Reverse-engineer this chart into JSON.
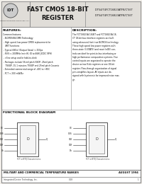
{
  "bg_color": "#f2efea",
  "border_color": "#888888",
  "panel_color": "#ffffff",
  "header_bg": "#e0ddd8",
  "header_title_line1": "FAST CMOS 18-BIT",
  "header_title_line2": "REGISTER",
  "header_part1": "IDT54/74FCT16823ATFB/CT/ET",
  "header_part2": "IDT54/74FCT16823ATFB/CT/ET",
  "features_title": "FEATURES:",
  "description_title": "DESCRIPTION:",
  "block_diagram_title": "FUNCTIONAL BLOCK DIAGRAM",
  "footer_line1": "MILITARY AND COMMERCIAL TEMPERATURE RANGES",
  "footer_date": "AUGUST 1994",
  "footer_company": "Integrated Device Technology, Inc.",
  "footer_num": "0.18",
  "footer_page": "1",
  "text_color": "#111111",
  "line_color": "#444444",
  "features_lines": [
    "Common features:",
    " - BiCMOS/BiCOMS Technology",
    " - High speed, low power CMOS replacement for",
    "    ABT functions",
    " - Typical tSK(o) (Output Skew) < 250ps",
    " - fSYS < 200MHz (min ffl, fO to 66ffl JEDEC 9PH)",
    " - <5ns setup and/or hold-to-clock",
    " - Packages include 56 mil pitch SSOP, 25mil pitch",
    "    TSSOP, 15.1 minutes TVSOP and 25mil pitch Ceramic",
    " - Extended commercial range of -40C to +85C",
    " - FCT < 200 mW/Bz"
  ],
  "desc_lines": [
    "The FCT16823A 18-BIT and FCT16823A 18-",
    "CT 18-bit bus interface registers are built",
    "using advanced, fast true BiCMOS technology.",
    "These high speed low power registers with",
    "three-state (3-STATE) and reset (nOE) con-",
    "trols are ideal for point-to-bus interfacing or",
    "high performance computation systems. Five",
    "control inputs are organized to operate the",
    "device as two 9-bit registers or one 18-bit",
    "register. Flow-through organization of signal",
    "pins simplifies layout. All inputs are de-",
    "signed with hysteresis for improved noise mar-",
    "gin."
  ]
}
